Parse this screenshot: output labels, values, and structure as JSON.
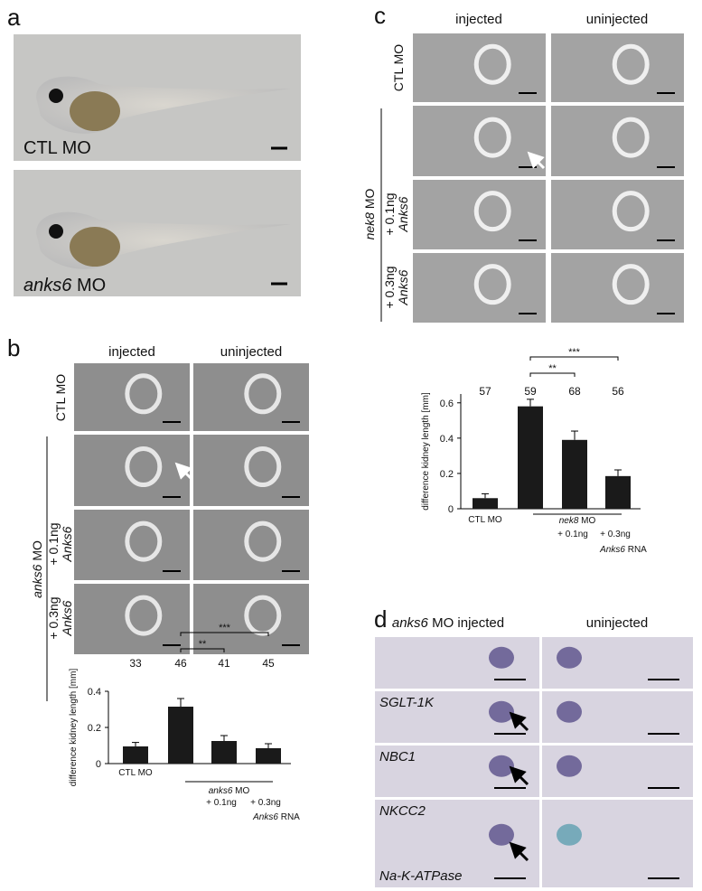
{
  "panel_labels": [
    "a",
    "b",
    "c",
    "d"
  ],
  "panel_a": {
    "label_1": "CTL MO",
    "label_2": {
      "italic": "anks6",
      "text": "MO"
    }
  },
  "panel_b": {
    "headers": [
      "injected",
      "uninjected"
    ],
    "row_1": "CTL MO",
    "group": {
      "italic": "anks6",
      "text": "MO"
    },
    "row_3": {
      "dose": "+ 0.1ng",
      "italic": "Anks6"
    },
    "row_4": {
      "dose": "+ 0.3ng",
      "italic": "Anks6"
    }
  },
  "panel_c": {
    "headers": [
      "injected",
      "uninjected"
    ],
    "row_1": "CTL MO",
    "group": {
      "italic": "nek8",
      "text": "MO"
    },
    "row_3": {
      "dose": "+ 0.1ng",
      "italic": "Anks6"
    },
    "row_4": {
      "dose": "+ 0.3ng",
      "italic": "Anks6"
    }
  },
  "panel_d": {
    "headers": [
      {
        "italic": "anks6",
        "text": "MO injected"
      },
      "uninjected"
    ],
    "genes": [
      "SGLT-1K",
      "NBC1",
      "NKCC2",
      "Na-K-ATPase"
    ]
  },
  "chart_data": [
    {
      "type": "bar",
      "ylabel": "difference kidney length [mm]",
      "categories": [
        "CTL MO",
        null,
        null,
        null
      ],
      "values": [
        0.095,
        0.315,
        0.125,
        0.085
      ],
      "errors": [
        0.022,
        0.045,
        0.03,
        0.025
      ],
      "n": [
        33,
        46,
        41,
        45
      ],
      "significance": [
        "**",
        "***"
      ],
      "group_label": {
        "italic": "anks6",
        "text": "MO"
      },
      "dose_labels": [
        "+ 0.1ng",
        "+ 0.3ng"
      ],
      "rna_label": {
        "italic": "Anks6",
        "text": "RNA"
      },
      "color": "#1a1a1a",
      "ylim": [
        0,
        0.4
      ],
      "yticks": [
        0,
        0.2,
        0.4
      ]
    },
    {
      "type": "bar",
      "ylabel": "difference kidney length [mm]",
      "categories": [
        "CTL MO",
        null,
        null,
        null
      ],
      "values": [
        0.06,
        0.58,
        0.39,
        0.185
      ],
      "errors": [
        0.025,
        0.04,
        0.05,
        0.035
      ],
      "n": [
        57,
        59,
        68,
        56
      ],
      "significance": [
        "**",
        "***"
      ],
      "group_label": {
        "italic": "nek8",
        "text": "MO"
      },
      "dose_labels": [
        "+ 0.1ng",
        "+ 0.3ng"
      ],
      "rna_label": {
        "italic": "Anks6",
        "text": "RNA"
      },
      "color": "#1a1a1a",
      "ylim": [
        0,
        0.65
      ],
      "yticks": [
        0,
        0.2,
        0.4,
        0.6
      ]
    }
  ]
}
